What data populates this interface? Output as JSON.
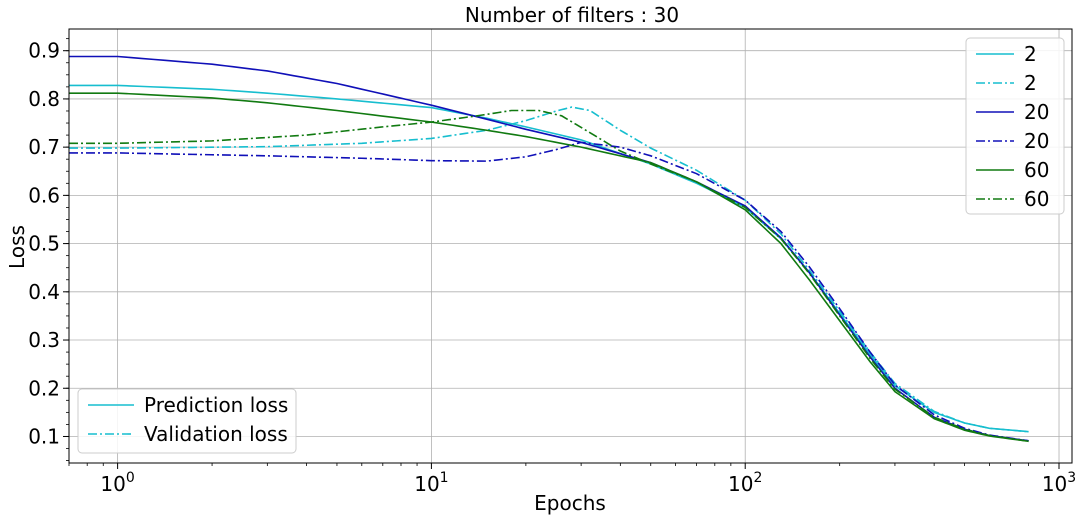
{
  "chart_data": {
    "type": "line",
    "title": "Number of filters : 30",
    "xlabel": "Epochs",
    "ylabel": "Loss",
    "xscale": "log",
    "xlim": [
      0.7,
      1100
    ],
    "ylim": [
      0.045,
      0.945
    ],
    "grid": true,
    "x_ticks": [
      {
        "value": 1,
        "base": "10",
        "exp": "0"
      },
      {
        "value": 10,
        "base": "10",
        "exp": "1"
      },
      {
        "value": 100,
        "base": "10",
        "exp": "2"
      },
      {
        "value": 1000,
        "base": "10",
        "exp": "3"
      }
    ],
    "y_ticks": [
      "0.1",
      "0.2",
      "0.3",
      "0.4",
      "0.5",
      "0.6",
      "0.7",
      "0.8",
      "0.9"
    ],
    "series": [
      {
        "name": "2",
        "color": "#17becf",
        "style": "solid",
        "points": [
          [
            0.7,
            0.828
          ],
          [
            1,
            0.828
          ],
          [
            2,
            0.82
          ],
          [
            3,
            0.812
          ],
          [
            5,
            0.8
          ],
          [
            10,
            0.782
          ],
          [
            15,
            0.76
          ],
          [
            20,
            0.742
          ],
          [
            30,
            0.715
          ],
          [
            50,
            0.665
          ],
          [
            70,
            0.625
          ],
          [
            100,
            0.575
          ],
          [
            130,
            0.51
          ],
          [
            160,
            0.44
          ],
          [
            200,
            0.355
          ],
          [
            250,
            0.27
          ],
          [
            300,
            0.205
          ],
          [
            400,
            0.15
          ],
          [
            500,
            0.128
          ],
          [
            600,
            0.117
          ],
          [
            800,
            0.11
          ]
        ]
      },
      {
        "name": "2",
        "color": "#17becf",
        "style": "dashdot",
        "points": [
          [
            0.7,
            0.698
          ],
          [
            1,
            0.698
          ],
          [
            3,
            0.701
          ],
          [
            6,
            0.708
          ],
          [
            10,
            0.718
          ],
          [
            15,
            0.735
          ],
          [
            20,
            0.755
          ],
          [
            25,
            0.775
          ],
          [
            28,
            0.783
          ],
          [
            32,
            0.776
          ],
          [
            40,
            0.735
          ],
          [
            50,
            0.698
          ],
          [
            70,
            0.652
          ],
          [
            100,
            0.59
          ],
          [
            130,
            0.52
          ],
          [
            160,
            0.445
          ],
          [
            200,
            0.36
          ],
          [
            250,
            0.275
          ],
          [
            300,
            0.21
          ],
          [
            400,
            0.152
          ],
          [
            500,
            0.128
          ],
          [
            600,
            0.117
          ],
          [
            800,
            0.11
          ]
        ]
      },
      {
        "name": "20",
        "color": "#1010b8",
        "style": "solid",
        "points": [
          [
            0.7,
            0.888
          ],
          [
            1,
            0.888
          ],
          [
            2,
            0.872
          ],
          [
            3,
            0.858
          ],
          [
            5,
            0.832
          ],
          [
            10,
            0.787
          ],
          [
            15,
            0.758
          ],
          [
            20,
            0.737
          ],
          [
            30,
            0.71
          ],
          [
            50,
            0.668
          ],
          [
            70,
            0.628
          ],
          [
            100,
            0.578
          ],
          [
            130,
            0.512
          ],
          [
            160,
            0.44
          ],
          [
            200,
            0.352
          ],
          [
            250,
            0.265
          ],
          [
            300,
            0.2
          ],
          [
            400,
            0.14
          ],
          [
            500,
            0.115
          ],
          [
            600,
            0.102
          ],
          [
            800,
            0.091
          ]
        ]
      },
      {
        "name": "20",
        "color": "#1010b8",
        "style": "dashdot",
        "points": [
          [
            0.7,
            0.688
          ],
          [
            1,
            0.688
          ],
          [
            3,
            0.682
          ],
          [
            6,
            0.677
          ],
          [
            10,
            0.672
          ],
          [
            15,
            0.671
          ],
          [
            20,
            0.68
          ],
          [
            25,
            0.695
          ],
          [
            30,
            0.71
          ],
          [
            40,
            0.7
          ],
          [
            50,
            0.682
          ],
          [
            70,
            0.645
          ],
          [
            100,
            0.59
          ],
          [
            130,
            0.525
          ],
          [
            160,
            0.452
          ],
          [
            200,
            0.365
          ],
          [
            250,
            0.275
          ],
          [
            300,
            0.207
          ],
          [
            400,
            0.145
          ],
          [
            500,
            0.117
          ],
          [
            600,
            0.103
          ],
          [
            800,
            0.091
          ]
        ]
      },
      {
        "name": "60",
        "color": "#117a11",
        "style": "solid",
        "points": [
          [
            0.7,
            0.812
          ],
          [
            1,
            0.812
          ],
          [
            2,
            0.802
          ],
          [
            3,
            0.792
          ],
          [
            5,
            0.776
          ],
          [
            10,
            0.752
          ],
          [
            15,
            0.735
          ],
          [
            20,
            0.722
          ],
          [
            30,
            0.7
          ],
          [
            50,
            0.668
          ],
          [
            70,
            0.628
          ],
          [
            100,
            0.57
          ],
          [
            130,
            0.5
          ],
          [
            160,
            0.425
          ],
          [
            200,
            0.34
          ],
          [
            250,
            0.255
          ],
          [
            300,
            0.193
          ],
          [
            400,
            0.137
          ],
          [
            500,
            0.113
          ],
          [
            600,
            0.101
          ],
          [
            800,
            0.09
          ]
        ]
      },
      {
        "name": "60",
        "color": "#117a11",
        "style": "dashdot",
        "points": [
          [
            0.7,
            0.708
          ],
          [
            1,
            0.708
          ],
          [
            2,
            0.713
          ],
          [
            4,
            0.725
          ],
          [
            7,
            0.742
          ],
          [
            10,
            0.752
          ],
          [
            14,
            0.765
          ],
          [
            18,
            0.776
          ],
          [
            22,
            0.776
          ],
          [
            26,
            0.765
          ],
          [
            32,
            0.73
          ],
          [
            40,
            0.692
          ],
          [
            50,
            0.665
          ],
          [
            70,
            0.628
          ],
          [
            100,
            0.575
          ],
          [
            130,
            0.51
          ],
          [
            160,
            0.438
          ],
          [
            200,
            0.35
          ],
          [
            250,
            0.262
          ],
          [
            300,
            0.198
          ],
          [
            400,
            0.14
          ],
          [
            500,
            0.115
          ],
          [
            600,
            0.102
          ],
          [
            800,
            0.09
          ]
        ]
      }
    ],
    "legend_series": {
      "placement": "top-right",
      "entries": [
        {
          "label": "2",
          "color": "#17becf",
          "style": "solid"
        },
        {
          "label": "2",
          "color": "#17becf",
          "style": "dashdot"
        },
        {
          "label": "20",
          "color": "#1010b8",
          "style": "solid"
        },
        {
          "label": "20",
          "color": "#1010b8",
          "style": "dashdot"
        },
        {
          "label": "60",
          "color": "#117a11",
          "style": "solid"
        },
        {
          "label": "60",
          "color": "#117a11",
          "style": "dashdot"
        }
      ]
    },
    "legend_types": {
      "placement": "lower-left",
      "entries": [
        {
          "label": "Prediction loss",
          "color": "#17becf",
          "style": "solid"
        },
        {
          "label": "Validation loss",
          "color": "#17becf",
          "style": "dashdot"
        }
      ]
    }
  }
}
